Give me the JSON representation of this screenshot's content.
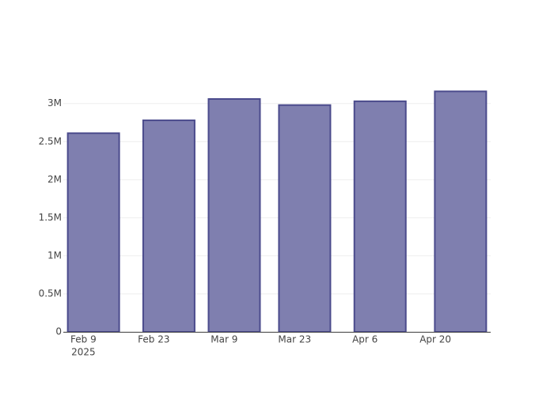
{
  "chart_data": {
    "type": "bar",
    "x": [
      "2025-02-11",
      "2025-02-26",
      "2025-03-11",
      "2025-03-25",
      "2025-04-09",
      "2025-04-25"
    ],
    "values": [
      2610000,
      2780000,
      3060000,
      2980000,
      3030000,
      3160000
    ],
    "color": "#7f7faf",
    "line_color": "#4b4b8c",
    "xlim": [
      "2025-02-05",
      "2025-05-01"
    ],
    "xticks": [
      {
        "value": "2025-02-09",
        "label": "Feb 9"
      },
      {
        "value": "2025-02-23",
        "label": "Feb 23"
      },
      {
        "value": "2025-03-09",
        "label": "Mar 9"
      },
      {
        "value": "2025-03-23",
        "label": "Mar 23"
      },
      {
        "value": "2025-04-06",
        "label": "Apr 6"
      },
      {
        "value": "2025-04-20",
        "label": "Apr 20"
      }
    ],
    "x_tick_year": "2025",
    "ylim": [
      0,
      3320000
    ],
    "yticks": [
      0,
      {
        "value": 500000,
        "label": "0.5M"
      },
      {
        "value": 1000000,
        "label": "1M"
      },
      {
        "value": 1500000,
        "label": "1.5M"
      },
      {
        "value": 2000000,
        "label": "2M"
      },
      {
        "value": 2500000,
        "label": "2.5M"
      },
      {
        "value": 3000000,
        "label": "3M"
      }
    ],
    "grid": true
  }
}
